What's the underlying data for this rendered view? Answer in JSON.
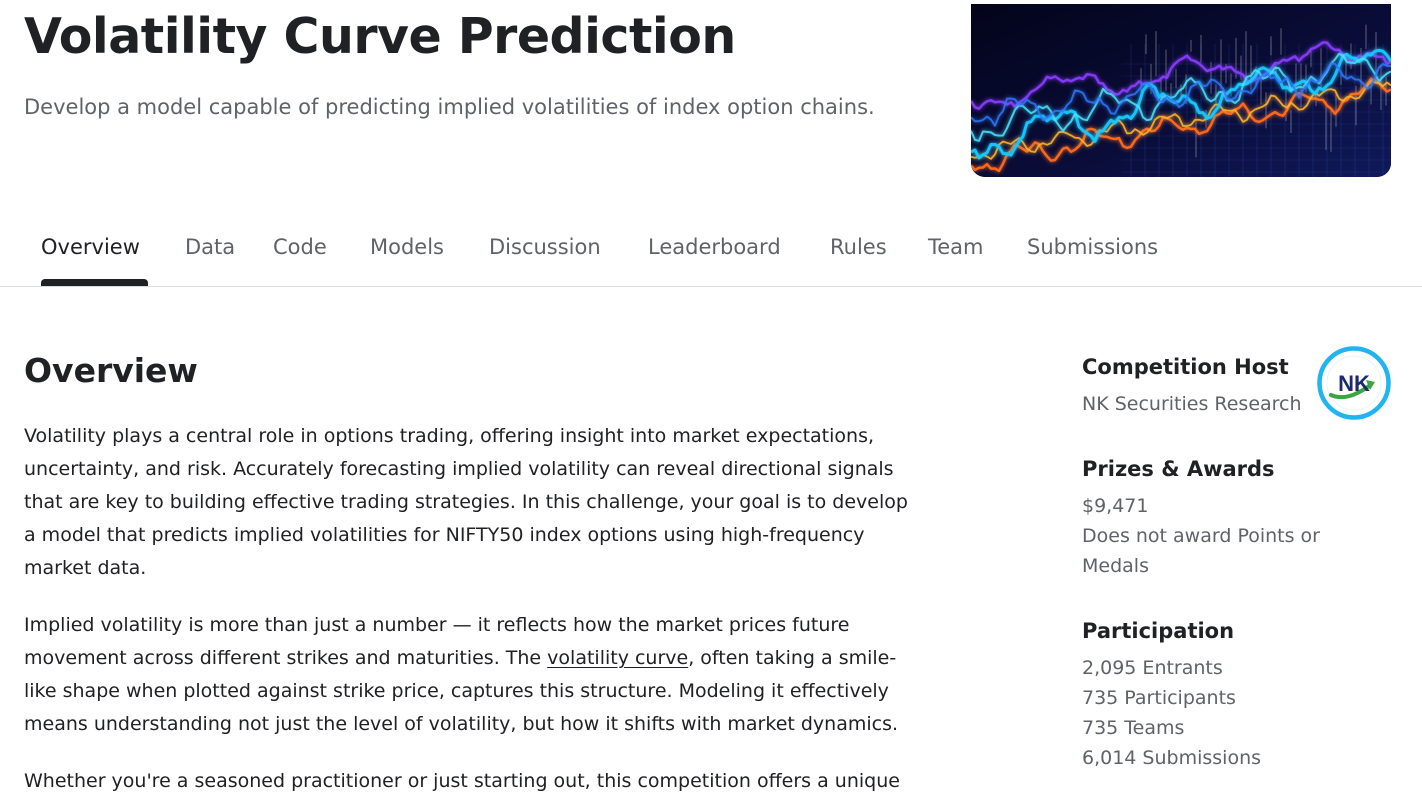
{
  "header": {
    "title": "Volatility Curve Prediction",
    "subtitle": "Develop a model capable of predicting implied volatilities of index option chains.",
    "banner_icon": "financial-chart-banner-image"
  },
  "tabs": [
    {
      "label": "Overview",
      "active": true
    },
    {
      "label": "Data",
      "active": false
    },
    {
      "label": "Code",
      "active": false
    },
    {
      "label": "Models",
      "active": false
    },
    {
      "label": "Discussion",
      "active": false
    },
    {
      "label": "Leaderboard",
      "active": false
    },
    {
      "label": "Rules",
      "active": false
    },
    {
      "label": "Team",
      "active": false
    },
    {
      "label": "Submissions",
      "active": false
    }
  ],
  "overview": {
    "heading": "Overview",
    "p1": [
      "Volatility plays a central role in options trading, offering insight into market expectations,",
      "uncertainty, and risk. Accurately forecasting implied volatility can reveal directional signals",
      "that are key to building effective trading strategies. In this challenge, your goal is to develop",
      "a model that predicts implied volatilities for NIFTY50 index options using high-frequency",
      "market data."
    ],
    "p2": {
      "line1": "Implied volatility is more than just a number — it reflects how the market prices future",
      "line2_before": "movement across different strikes and maturities. The ",
      "line2_link": "volatility curve",
      "line2_after": ", often taking a smile-",
      "line3": "like shape when plotted against strike price, captures this structure. Modeling it effectively",
      "line4": "means understanding not just the level of volatility, but how it shifts with market dynamics."
    },
    "p3": "Whether you're a seasoned practitioner or just starting out, this competition offers a unique"
  },
  "sidebar": {
    "host_label": "Competition Host",
    "host_name": "NK Securities Research",
    "host_logo_text": "NK",
    "prizes_label": "Prizes & Awards",
    "prize_amount": "$9,471",
    "prize_note_1": "Does not award Points or",
    "prize_note_2": "Medals",
    "participation_label": "Participation",
    "entrants": "2,095 Entrants",
    "participants": "735 Participants",
    "teams": "735 Teams",
    "submissions": "6,014 Submissions"
  },
  "colors": {
    "text_primary": "#202124",
    "text_secondary": "#5f6368",
    "divider": "#dadce0",
    "logo_ring": "#20b4f0",
    "logo_navy": "#1d2a6b",
    "logo_green": "#3aa63f"
  }
}
